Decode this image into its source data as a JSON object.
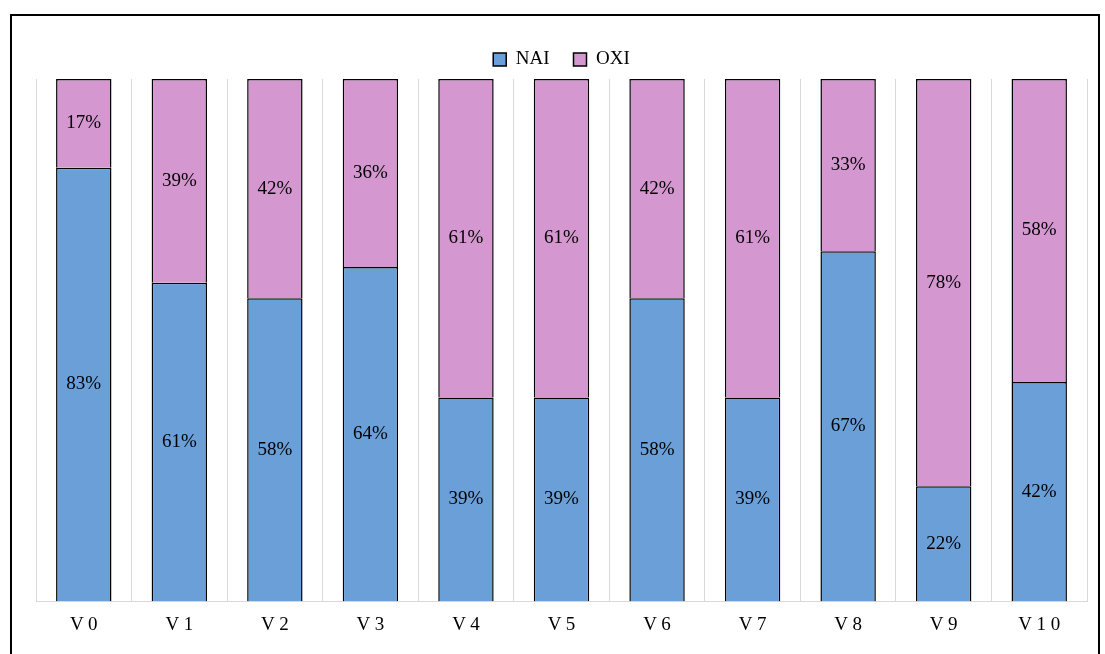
{
  "chart_data": {
    "type": "bar",
    "stacked": true,
    "categories": [
      "V 0",
      "V 1",
      "V 2",
      "V 3",
      "V 4",
      "V 5",
      "V 6",
      "V 7",
      "V 8",
      "V 9",
      "V 1 0"
    ],
    "series": [
      {
        "name": "NAI",
        "color": "#6a9fd8",
        "values": [
          83,
          61,
          58,
          64,
          39,
          39,
          58,
          39,
          67,
          22,
          42
        ],
        "value_labels": [
          "83%",
          "61%",
          "58%",
          "64%",
          "39%",
          "39%",
          "58%",
          "39%",
          "67%",
          "22%",
          "42%"
        ]
      },
      {
        "name": "OXI",
        "color": "#d497d0",
        "values": [
          17,
          39,
          42,
          36,
          61,
          61,
          42,
          61,
          33,
          78,
          58
        ],
        "value_labels": [
          "17%",
          "39%",
          "42%",
          "36%",
          "61%",
          "61%",
          "42%",
          "61%",
          "33%",
          "78%",
          "58%"
        ]
      }
    ],
    "ylim": [
      0,
      100
    ],
    "tick_labels": "x",
    "grid": "x",
    "legend": "top"
  }
}
